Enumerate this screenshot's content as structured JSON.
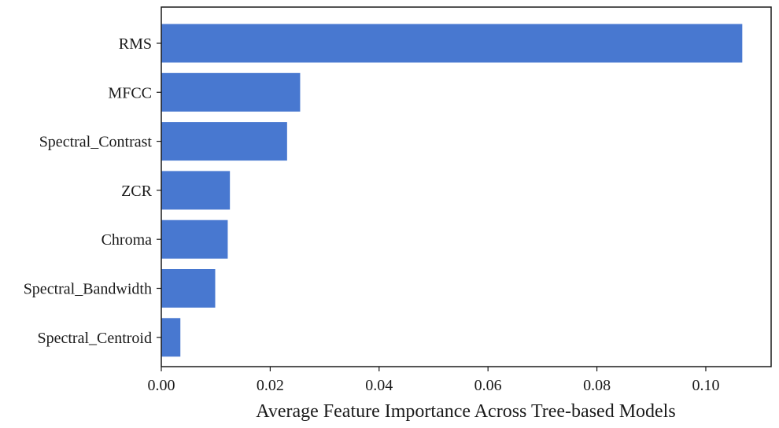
{
  "chart_data": {
    "type": "bar",
    "orientation": "horizontal",
    "categories": [
      "RMS",
      "MFCC",
      "Spectral_Contrast",
      "ZCR",
      "Chroma",
      "Spectral_Bandwidth",
      "Spectral_Centroid"
    ],
    "values": [
      0.1067,
      0.0255,
      0.0231,
      0.0126,
      0.0122,
      0.0099,
      0.0035
    ],
    "xlabel": "Average Feature Importance Across Tree-based Models",
    "ylabel": "",
    "xlim": [
      0,
      0.112
    ],
    "xticks": [
      0.0,
      0.02,
      0.04,
      0.06,
      0.08,
      0.1
    ],
    "xtick_labels": [
      "0.00",
      "0.02",
      "0.04",
      "0.06",
      "0.08",
      "0.10"
    ],
    "grid": false,
    "bar_color": "#4878d0"
  }
}
